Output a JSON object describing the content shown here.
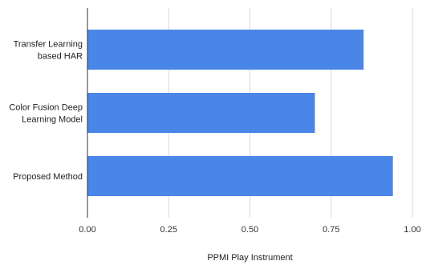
{
  "chart_data": {
    "type": "bar",
    "orientation": "horizontal",
    "categories": [
      [
        "Transfer Learning",
        "based HAR"
      ],
      [
        "Color Fusion Deep",
        "Learning Model"
      ],
      [
        "Proposed Method"
      ]
    ],
    "values": [
      0.85,
      0.7,
      0.94
    ],
    "xlabel": "PPMI Play Instrument",
    "xlim": [
      0,
      1
    ],
    "xticks": [
      "0.00",
      "0.25",
      "0.50",
      "0.75",
      "1.00"
    ],
    "grid": "vertical",
    "bar_color": "#4a86e8"
  }
}
